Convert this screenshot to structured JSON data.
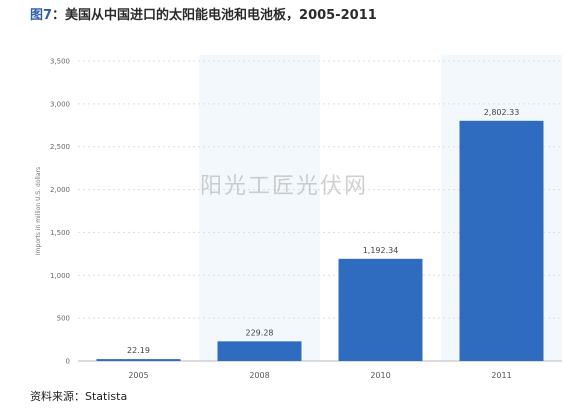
{
  "figure": {
    "title_prefix": "图7",
    "title_text": "：美国从中国进口的太阳能电池和电池板，2005-2011",
    "source": "资料来源：Statista",
    "watermark": "阳光工匠光伏网"
  },
  "chart_data": {
    "type": "bar",
    "categories": [
      "2005",
      "2008",
      "2010",
      "2011"
    ],
    "values": [
      22.19,
      229.28,
      1192.34,
      2802.33
    ],
    "value_labels": [
      "22.19",
      "229.28",
      "1,192.34",
      "2,802.33"
    ],
    "ylabel": "Imports in million U.S. dollars",
    "ylim": [
      0,
      3500
    ],
    "yticks": [
      0,
      500,
      1000,
      1500,
      2000,
      2500,
      3000,
      3500
    ],
    "ytick_labels": [
      "0",
      "500",
      "1,000",
      "1,500",
      "2,000",
      "2,500",
      "3,000",
      "3,500"
    ],
    "grid": true,
    "bar_color": "#2f6cc0",
    "band_color": "#f3f8fc"
  }
}
